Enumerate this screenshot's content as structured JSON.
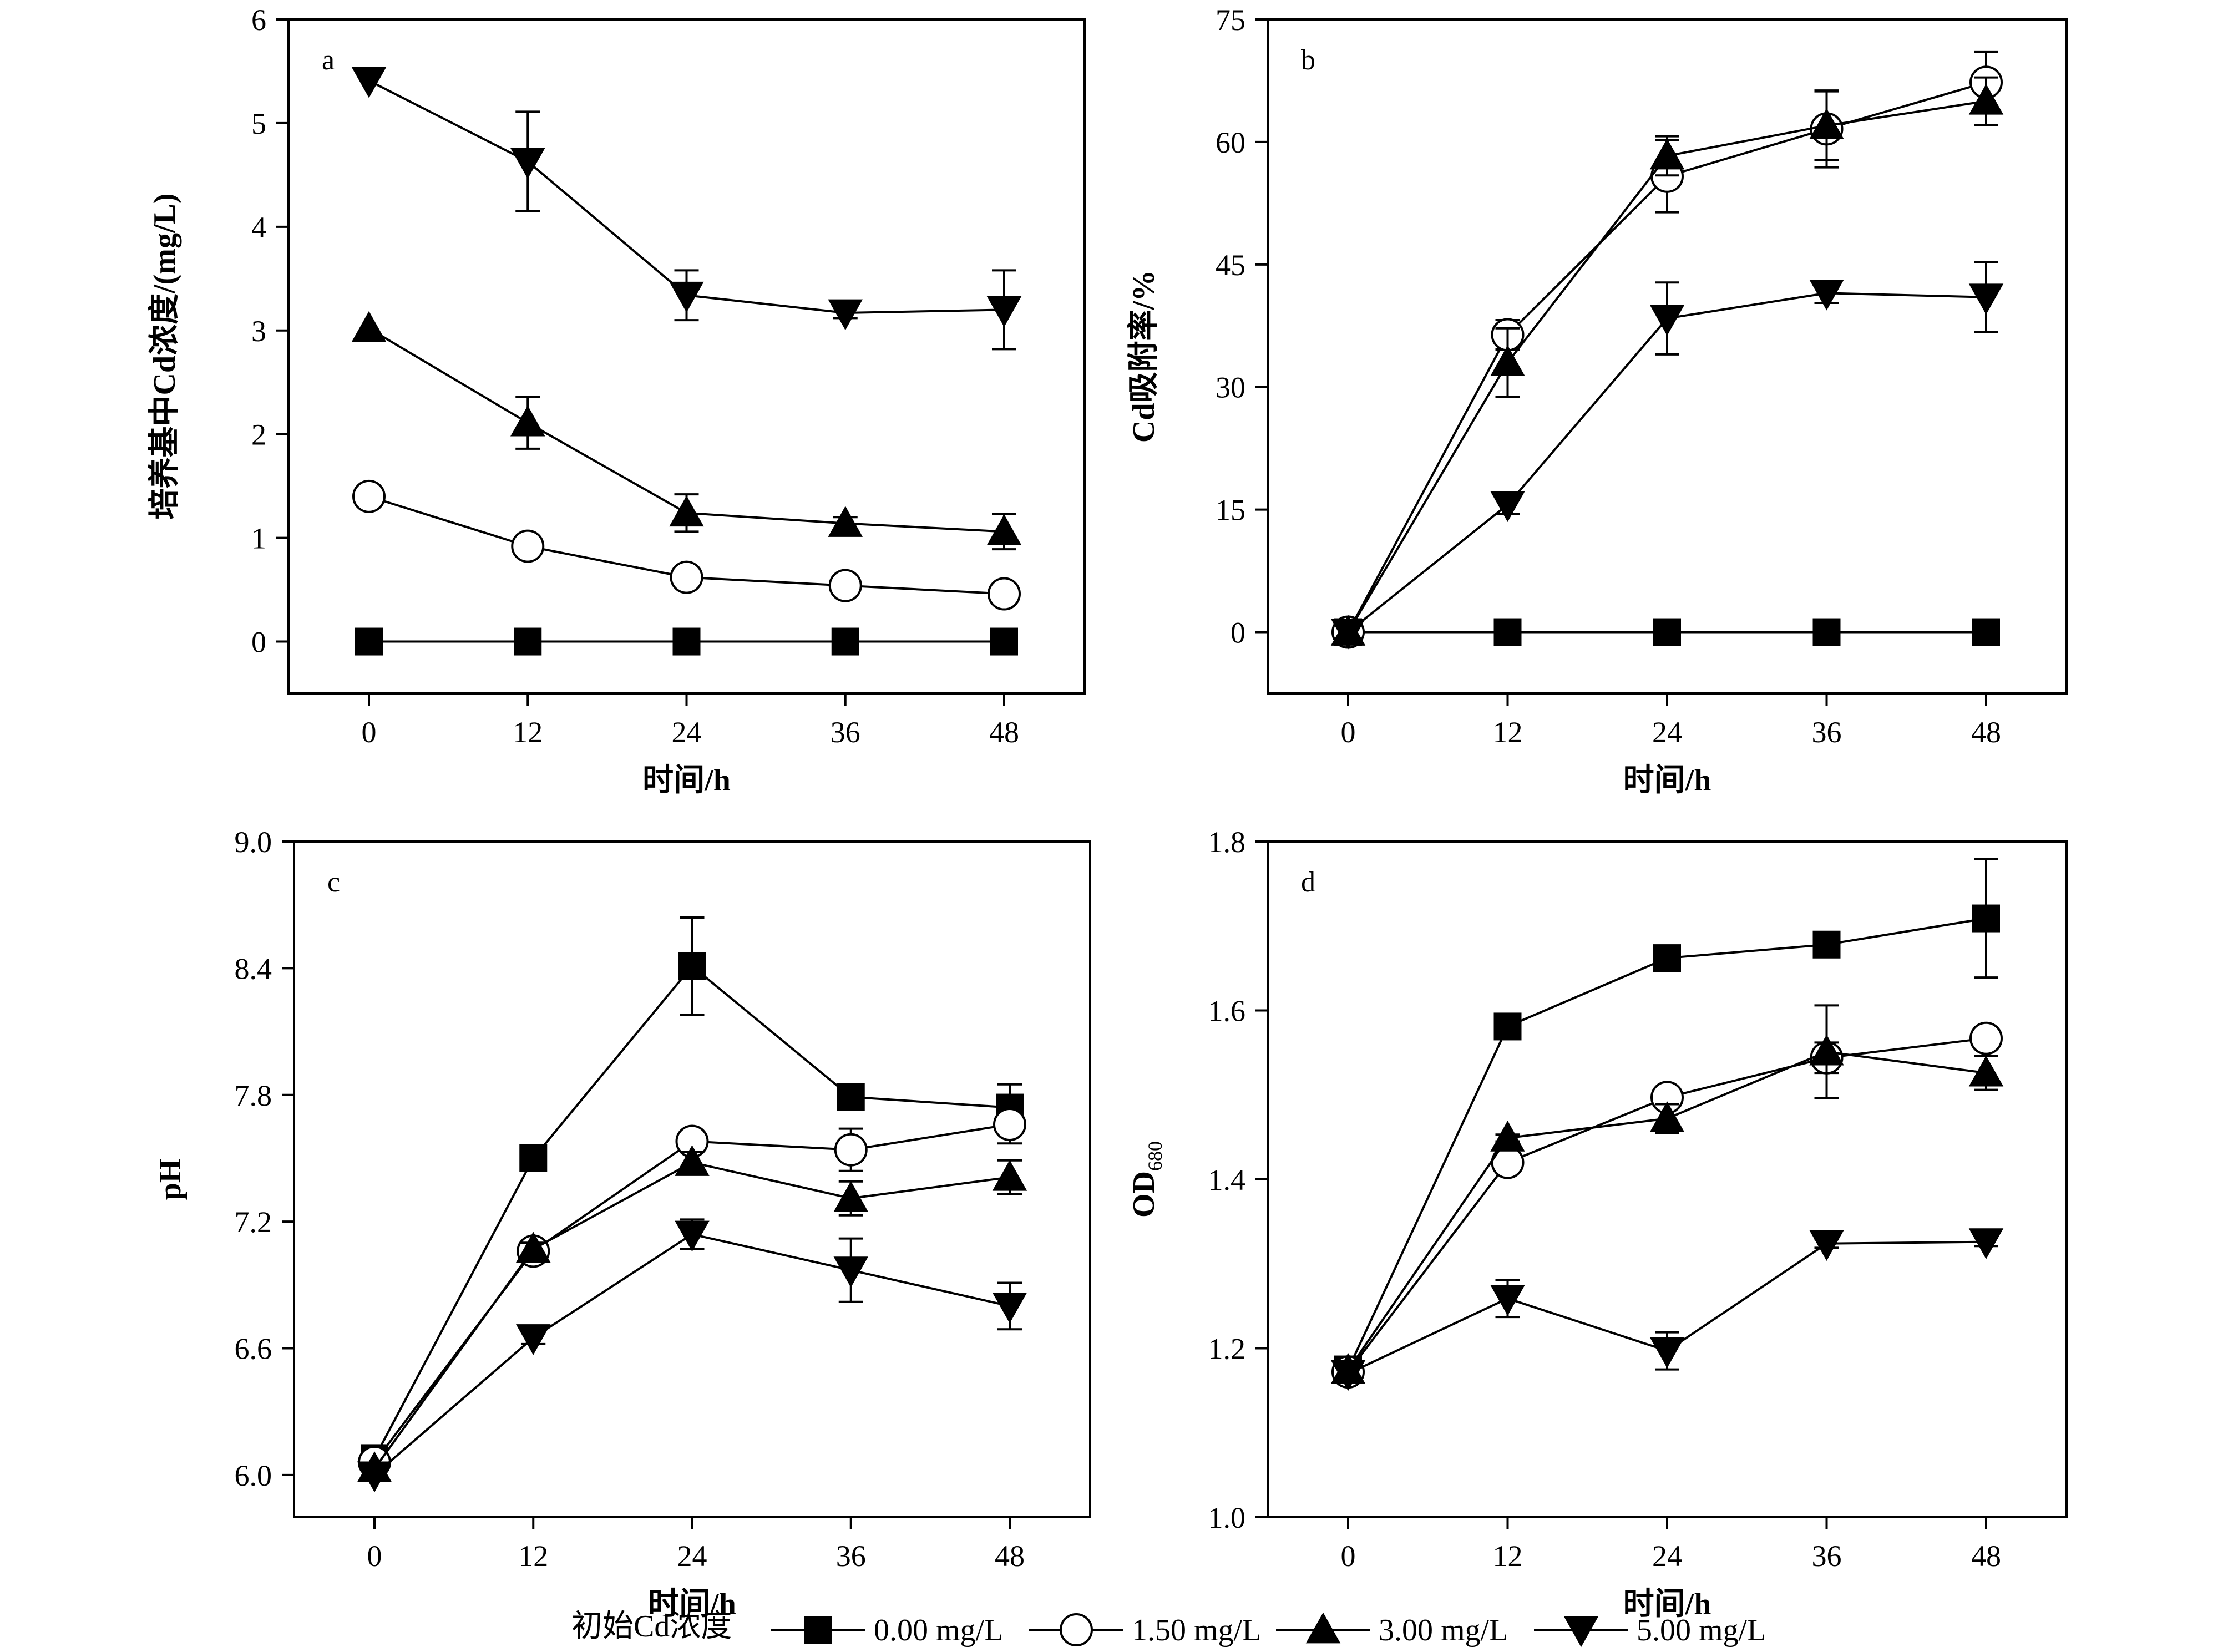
{
  "chart_data": [
    {
      "type": "line",
      "panel_label": "a",
      "xlabel": "时间/h",
      "ylabel": "培养基中Cd浓度/(mg/L)",
      "x": [
        0,
        12,
        24,
        36,
        48
      ],
      "xticks": [
        "0",
        "12",
        "24",
        "36",
        "48"
      ],
      "ylim": [
        -0.5,
        6
      ],
      "yticks": [
        "0",
        "1",
        "2",
        "3",
        "4",
        "5",
        "6"
      ],
      "series": [
        {
          "name": "0.00 mg/L",
          "marker": "square",
          "values": [
            0,
            0,
            0,
            0,
            0
          ],
          "err": [
            0,
            0,
            0,
            0,
            0
          ]
        },
        {
          "name": "1.50 mg/L",
          "marker": "circle",
          "values": [
            1.4,
            0.92,
            0.62,
            0.54,
            0.46
          ],
          "err": [
            0,
            0.07,
            0.07,
            0.06,
            0.05
          ]
        },
        {
          "name": "3.00 mg/L",
          "marker": "triangle-up",
          "values": [
            3.02,
            2.11,
            1.24,
            1.14,
            1.06
          ],
          "err": [
            0,
            0.25,
            0.18,
            0.06,
            0.17
          ]
        },
        {
          "name": "5.00 mg/L",
          "marker": "triangle-down",
          "values": [
            5.41,
            4.63,
            3.34,
            3.17,
            3.2
          ],
          "err": [
            0,
            0.48,
            0.24,
            0.05,
            0.38
          ]
        }
      ]
    },
    {
      "type": "line",
      "panel_label": "b",
      "xlabel": "时间/h",
      "ylabel": "Cd吸附率/%",
      "x": [
        0,
        12,
        24,
        36,
        48
      ],
      "xticks": [
        "0",
        "12",
        "24",
        "36",
        "48"
      ],
      "ylim": [
        -7.5,
        75
      ],
      "yticks": [
        "0",
        "15",
        "30",
        "45",
        "60",
        "75"
      ],
      "series": [
        {
          "name": "0.00 mg/L",
          "marker": "square",
          "values": [
            0,
            0,
            0,
            0,
            0
          ],
          "err": [
            0,
            0,
            0,
            0,
            0
          ]
        },
        {
          "name": "1.50 mg/L",
          "marker": "circle",
          "values": [
            0,
            36.4,
            55.8,
            61.6,
            67.3
          ],
          "err": [
            0,
            1.8,
            4.4,
            4.7,
            3.7
          ]
        },
        {
          "name": "3.00 mg/L",
          "marker": "triangle-up",
          "values": [
            0,
            33.0,
            58.3,
            62.0,
            65.0
          ],
          "err": [
            0,
            4.2,
            2.4,
            4.2,
            2.9
          ]
        },
        {
          "name": "5.00 mg/L",
          "marker": "triangle-down",
          "values": [
            0,
            15.6,
            38.4,
            41.5,
            41.0
          ],
          "err": [
            0,
            1.1,
            4.4,
            1.2,
            4.3
          ]
        }
      ]
    },
    {
      "type": "line",
      "panel_label": "c",
      "xlabel": "时间/h",
      "ylabel": "pH",
      "x": [
        0,
        12,
        24,
        36,
        48
      ],
      "xticks": [
        "0",
        "12",
        "24",
        "36",
        "48"
      ],
      "ylim": [
        5.8,
        9.0
      ],
      "yticks": [
        "6.0",
        "6.6",
        "7.2",
        "7.8",
        "8.4",
        "9.0"
      ],
      "series": [
        {
          "name": "0.00 mg/L",
          "marker": "square",
          "values": [
            6.08,
            7.5,
            8.41,
            7.79,
            7.74
          ],
          "err": [
            0,
            0.03,
            0.23,
            0.03,
            0.11
          ]
        },
        {
          "name": "1.50 mg/L",
          "marker": "circle",
          "values": [
            6.06,
            7.06,
            7.58,
            7.54,
            7.66
          ],
          "err": [
            0,
            0.03,
            0.04,
            0.1,
            0.09
          ]
        },
        {
          "name": "3.00 mg/L",
          "marker": "triangle-up",
          "values": [
            6.03,
            7.07,
            7.48,
            7.31,
            7.41
          ],
          "err": [
            0,
            0.03,
            0.05,
            0.08,
            0.08
          ]
        },
        {
          "name": "5.00 mg/L",
          "marker": "triangle-down",
          "values": [
            6.0,
            6.65,
            7.14,
            6.97,
            6.8
          ],
          "err": [
            0,
            0.03,
            0.07,
            0.15,
            0.11
          ]
        }
      ]
    },
    {
      "type": "line",
      "panel_label": "d",
      "xlabel": "时间/h",
      "ylabel": "OD",
      "ylabel_sub": "680",
      "x": [
        0,
        12,
        24,
        36,
        48
      ],
      "xticks": [
        "0",
        "12",
        "24",
        "36",
        "48"
      ],
      "ylim": [
        1.0,
        1.8
      ],
      "yticks": [
        "1.0",
        "1.2",
        "1.4",
        "1.6",
        "1.8"
      ],
      "series": [
        {
          "name": "0.00 mg/L",
          "marker": "square",
          "values": [
            1.175,
            1.581,
            1.662,
            1.678,
            1.709
          ],
          "err": [
            0,
            0.004,
            0.004,
            0.004,
            0.07
          ]
        },
        {
          "name": "1.50 mg/L",
          "marker": "circle",
          "values": [
            1.172,
            1.42,
            1.497,
            1.544,
            1.567
          ],
          "err": [
            0,
            0.008,
            0.006,
            0.018,
            0.013
          ]
        },
        {
          "name": "3.00 mg/L",
          "marker": "triangle-up",
          "values": [
            1.174,
            1.449,
            1.472,
            1.551,
            1.526
          ],
          "err": [
            0,
            0.004,
            0.017,
            0.055,
            0.02
          ]
        },
        {
          "name": "5.00 mg/L",
          "marker": "triangle-down",
          "values": [
            1.17,
            1.259,
            1.197,
            1.324,
            1.326
          ],
          "err": [
            0,
            0.022,
            0.022,
            0.005,
            0.005
          ]
        }
      ]
    }
  ],
  "legend": {
    "title": "初始Cd浓度",
    "placement": "bottom-center",
    "items": [
      {
        "label": "0.00 mg/L",
        "marker": "square"
      },
      {
        "label": "1.50 mg/L",
        "marker": "circle"
      },
      {
        "label": "3.00 mg/L",
        "marker": "triangle-up"
      },
      {
        "label": "5.00 mg/L",
        "marker": "triangle-down"
      }
    ]
  }
}
